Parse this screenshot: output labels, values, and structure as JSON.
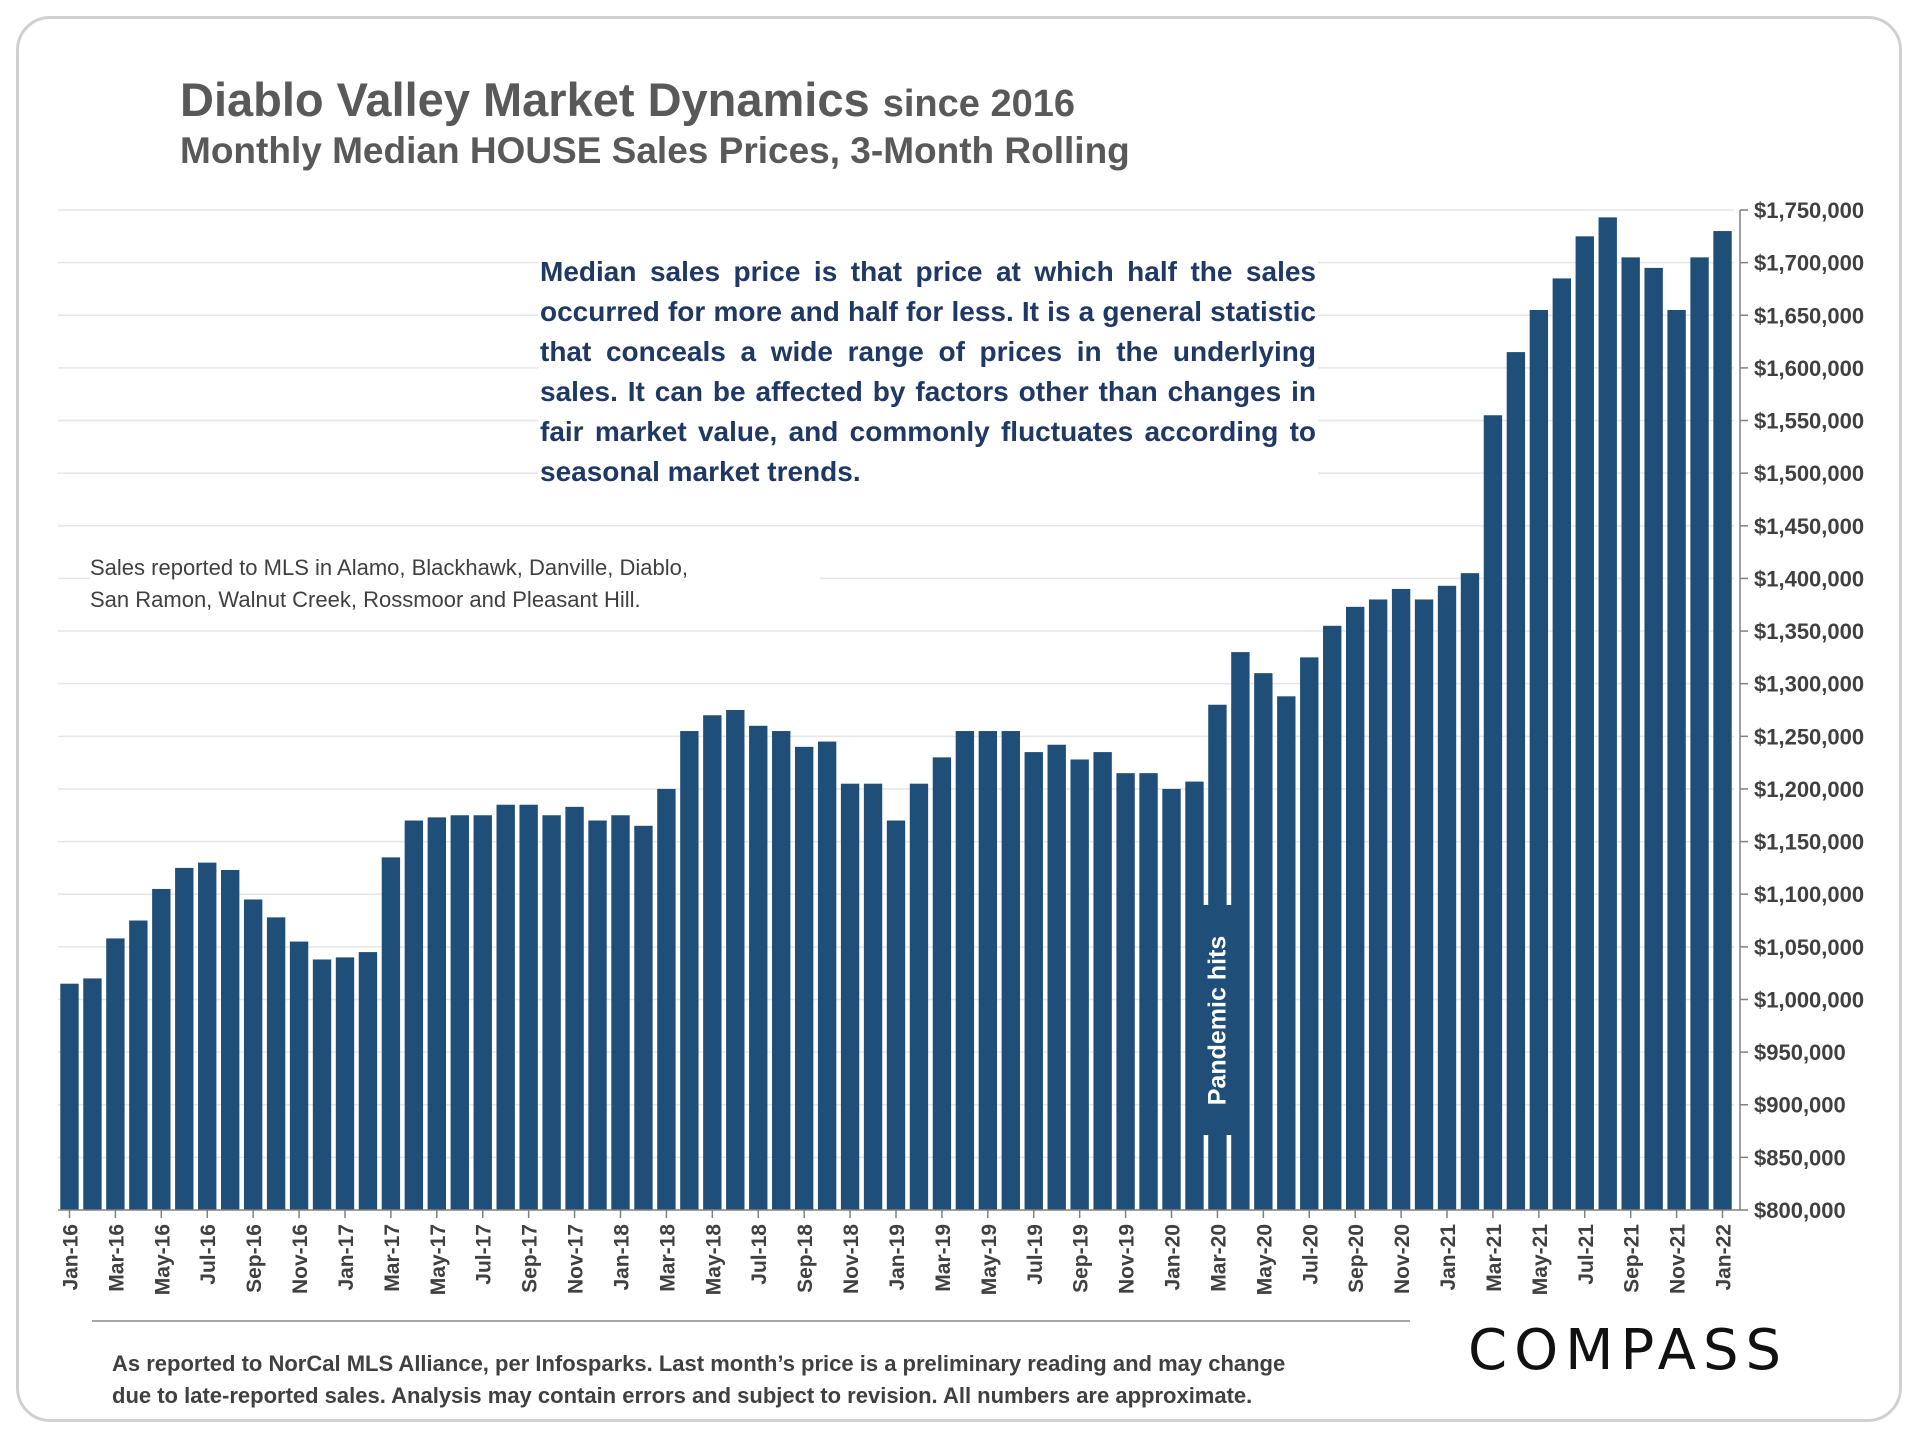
{
  "header": {
    "title": "Diablo Valley Market Dynamics",
    "title_suffix": "since 2016",
    "subtitle": "Monthly Median HOUSE Sales Prices, 3-Month Rolling"
  },
  "annotations": {
    "definition": "Median sales price is that price at which half the sales occurred for more and half for less. It is a general statistic that conceals a wide range of prices in the underlying sales. It can be affected by factors other than changes in fair market value, and commonly fluctuates according to seasonal market trends.",
    "coverage_line1": "Sales reported to MLS in Alamo, Blackhawk, Danville, Diablo,",
    "coverage_line2": "San Ramon, Walnut Creek, Rossmoor and Pleasant Hill.",
    "pandemic": "Pandemic hits"
  },
  "footer": {
    "line1": "As reported to NorCal MLS Alliance, per Infosparks. Last month’s price is a preliminary reading and may change",
    "line2": "due to late-reported sales. Analysis may contain errors and subject to revision. All numbers are approximate.",
    "logo": "COMPASS"
  },
  "colors": {
    "bar": "#1f4e79",
    "title": "#595959",
    "note": "#1f3864",
    "grid": "#e6e6e6"
  },
  "chart_data": {
    "type": "bar",
    "title": "Monthly Median HOUSE Sales Prices, 3-Month Rolling",
    "xlabel": "",
    "ylabel": "",
    "ylim": [
      800000,
      1750000
    ],
    "y_ticks": [
      "$800,000",
      "$850,000",
      "$900,000",
      "$950,000",
      "$1,000,000",
      "$1,050,000",
      "$1,100,000",
      "$1,150,000",
      "$1,200,000",
      "$1,250,000",
      "$1,300,000",
      "$1,350,000",
      "$1,400,000",
      "$1,450,000",
      "$1,500,000",
      "$1,550,000",
      "$1,600,000",
      "$1,650,000",
      "$1,700,000",
      "$1,750,000"
    ],
    "x_tick_labels": [
      "Jan-16",
      "Mar-16",
      "May-16",
      "Jul-16",
      "Sep-16",
      "Nov-16",
      "Jan-17",
      "Mar-17",
      "May-17",
      "Jul-17",
      "Sep-17",
      "Nov-17",
      "Jan-18",
      "Mar-18",
      "May-18",
      "Jul-18",
      "Sep-18",
      "Nov-18",
      "Jan-19",
      "Mar-19",
      "May-19",
      "Jul-19",
      "Sep-19",
      "Nov-19",
      "Jan-20",
      "Mar-20",
      "May-20",
      "Jul-20",
      "Sep-20",
      "Nov-20",
      "Jan-21",
      "Mar-21",
      "May-21",
      "Jul-21",
      "Sep-21",
      "Nov-21",
      "Jan-22"
    ],
    "categories": [
      "Jan-16",
      "Feb-16",
      "Mar-16",
      "Apr-16",
      "May-16",
      "Jun-16",
      "Jul-16",
      "Aug-16",
      "Sep-16",
      "Oct-16",
      "Nov-16",
      "Dec-16",
      "Jan-17",
      "Feb-17",
      "Mar-17",
      "Apr-17",
      "May-17",
      "Jun-17",
      "Jul-17",
      "Aug-17",
      "Sep-17",
      "Oct-17",
      "Nov-17",
      "Dec-17",
      "Jan-18",
      "Feb-18",
      "Mar-18",
      "Apr-18",
      "May-18",
      "Jun-18",
      "Jul-18",
      "Aug-18",
      "Sep-18",
      "Oct-18",
      "Nov-18",
      "Dec-18",
      "Jan-19",
      "Feb-19",
      "Mar-19",
      "Apr-19",
      "May-19",
      "Jun-19",
      "Jul-19",
      "Aug-19",
      "Sep-19",
      "Oct-19",
      "Nov-19",
      "Dec-19",
      "Jan-20",
      "Feb-20",
      "Mar-20",
      "Apr-20",
      "May-20",
      "Jun-20",
      "Jul-20",
      "Aug-20",
      "Sep-20",
      "Oct-20",
      "Nov-20",
      "Dec-20",
      "Jan-21",
      "Feb-21",
      "Mar-21",
      "Apr-21",
      "May-21",
      "Jun-21",
      "Jul-21",
      "Aug-21",
      "Sep-21",
      "Oct-21",
      "Nov-21",
      "Dec-21",
      "Jan-22"
    ],
    "values": [
      1015000,
      1020000,
      1058000,
      1075000,
      1105000,
      1125000,
      1130000,
      1123000,
      1095000,
      1078000,
      1055000,
      1038000,
      1040000,
      1045000,
      1135000,
      1170000,
      1173000,
      1175000,
      1175000,
      1185000,
      1185000,
      1175000,
      1183000,
      1170000,
      1175000,
      1165000,
      1200000,
      1255000,
      1270000,
      1275000,
      1260000,
      1255000,
      1240000,
      1245000,
      1205000,
      1205000,
      1170000,
      1205000,
      1230000,
      1255000,
      1255000,
      1255000,
      1235000,
      1242000,
      1228000,
      1235000,
      1215000,
      1215000,
      1200000,
      1207000,
      1280000,
      1330000,
      1310000,
      1288000,
      1325000,
      1355000,
      1373000,
      1380000,
      1390000,
      1380000,
      1393000,
      1405000,
      1555000,
      1615000,
      1655000,
      1685000,
      1725000,
      1743000,
      1705000,
      1695000,
      1655000,
      1705000,
      1730000
    ]
  }
}
